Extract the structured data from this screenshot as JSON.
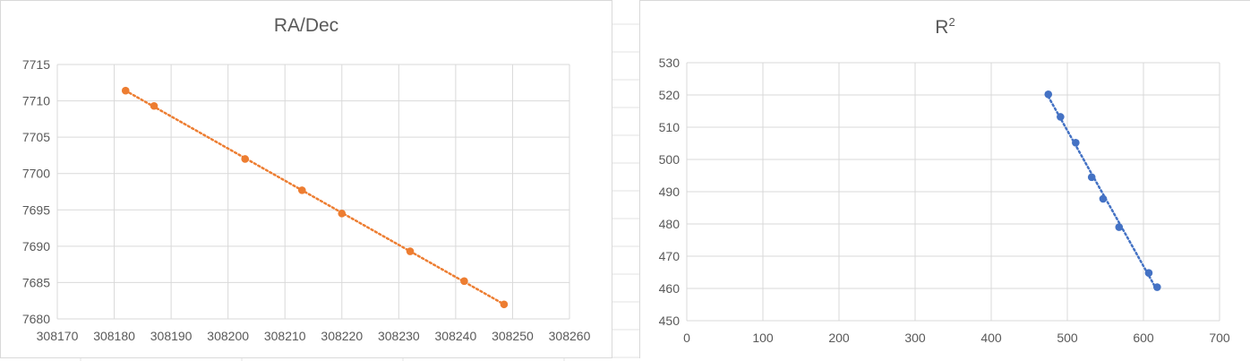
{
  "chart_data": [
    {
      "type": "scatter",
      "title": "RA/Dec",
      "xlim": [
        308170,
        308260
      ],
      "ylim": [
        7680,
        7715
      ],
      "x_ticks": [
        "308170",
        "308180",
        "308190",
        "308200",
        "308210",
        "308220",
        "308230",
        "308240",
        "308250",
        "308260"
      ],
      "y_ticks": [
        "7680",
        "7685",
        "7690",
        "7695",
        "7700",
        "7705",
        "7710",
        "7715"
      ],
      "grid": true,
      "legend": "none",
      "marker_color": "#ED7D31",
      "trendline": "linear-dotted",
      "points": [
        {
          "x": 308182,
          "y": 7711.4
        },
        {
          "x": 308187,
          "y": 7709.3
        },
        {
          "x": 308203,
          "y": 7702.0
        },
        {
          "x": 308213,
          "y": 7697.7
        },
        {
          "x": 308220,
          "y": 7694.5
        },
        {
          "x": 308232,
          "y": 7689.3
        },
        {
          "x": 308241.5,
          "y": 7685.2
        },
        {
          "x": 308248.5,
          "y": 7682.0
        }
      ]
    },
    {
      "type": "scatter",
      "title_main": "R",
      "title_sup": "2",
      "xlim": [
        0,
        700
      ],
      "ylim": [
        450,
        530
      ],
      "x_ticks": [
        "0",
        "100",
        "200",
        "300",
        "400",
        "500",
        "600",
        "700"
      ],
      "y_ticks": [
        "450",
        "460",
        "470",
        "480",
        "490",
        "500",
        "510",
        "520",
        "530"
      ],
      "grid": true,
      "legend": "none",
      "marker_color": "#4472C4",
      "trendline": "linear-dotted",
      "points": [
        {
          "x": 475,
          "y": 520.2
        },
        {
          "x": 491,
          "y": 513.2
        },
        {
          "x": 511,
          "y": 505.2
        },
        {
          "x": 532,
          "y": 494.5
        },
        {
          "x": 547,
          "y": 487.8
        },
        {
          "x": 568,
          "y": 479.0
        },
        {
          "x": 607,
          "y": 464.8
        },
        {
          "x": 618,
          "y": 460.4
        }
      ]
    }
  ]
}
